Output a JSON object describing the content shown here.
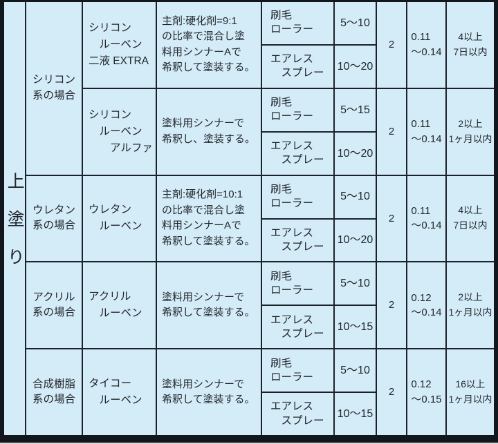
{
  "colors": {
    "cell_bg": "#d4ecf7",
    "grid_line": "#1c222b",
    "outer_border": "#12161d",
    "text": "#22262c"
  },
  "side_label": "上塗り",
  "categories": [
    {
      "label": "シリコン\n系の場合"
    },
    {
      "label": "ウレタン\n系の場合"
    },
    {
      "label": "アクリル\n系の場合"
    },
    {
      "label": "合成樹脂\n系の場合"
    }
  ],
  "blocks": [
    {
      "product": "シリコン\n　ルーベン\n二液 EXTRA",
      "instructions": "主剤:硬化剤=9:1\nの比率で混合し塗\n料用シンナーAで\n希釈して塗装する。",
      "coats": "2",
      "amount": "0.11\n〜0.14",
      "interval": "4以上\n7日以内",
      "rows": [
        {
          "method": "刷毛\nローラー",
          "dilution": "5〜10"
        },
        {
          "method": "エアレス\n　スプレー",
          "dilution": "10〜20"
        }
      ]
    },
    {
      "product": "シリコン\n　ルーベン\n　　アルファ",
      "instructions": "塗料用シンナーで\n希釈し、塗装する。",
      "coats": "2",
      "amount": "0.11\n〜0.14",
      "interval": "2以上\n1ヶ月以内",
      "rows": [
        {
          "method": "刷毛\nローラー",
          "dilution": "5〜15"
        },
        {
          "method": "エアレス\n　スプレー",
          "dilution": "10〜20"
        }
      ]
    },
    {
      "product": "ウレタン\n　ルーベン",
      "instructions": "主剤:硬化剤=10:1\nの比率で混合し塗\n料用シンナーAで\n希釈して塗装する。",
      "coats": "2",
      "amount": "0.11\n〜0.14",
      "interval": "4以上\n7日以内",
      "rows": [
        {
          "method": "刷毛\nローラー",
          "dilution": "5〜10"
        },
        {
          "method": "エアレス\n　スプレー",
          "dilution": "10〜20"
        }
      ]
    },
    {
      "product": "アクリル\n　ルーベン",
      "instructions": "塗料用シンナーで\n希釈して塗装する。",
      "coats": "2",
      "amount": "0.12\n〜0.14",
      "interval": "2以上\n1ヶ月以内",
      "rows": [
        {
          "method": "刷毛\nローラー",
          "dilution": "5〜10"
        },
        {
          "method": "エアレス\n　スプレー",
          "dilution": "10〜15"
        }
      ]
    },
    {
      "product": "タイコー\n　ルーベン",
      "instructions": "塗料用シンナーで\n希釈して塗装する。",
      "coats": "2",
      "amount": "0.12\n〜0.15",
      "interval": "16以上\n1ヶ月以内",
      "rows": [
        {
          "method": "刷毛\nローラー",
          "dilution": "5〜10"
        },
        {
          "method": "エアレス\n　スプレー",
          "dilution": "10〜15"
        }
      ]
    }
  ]
}
